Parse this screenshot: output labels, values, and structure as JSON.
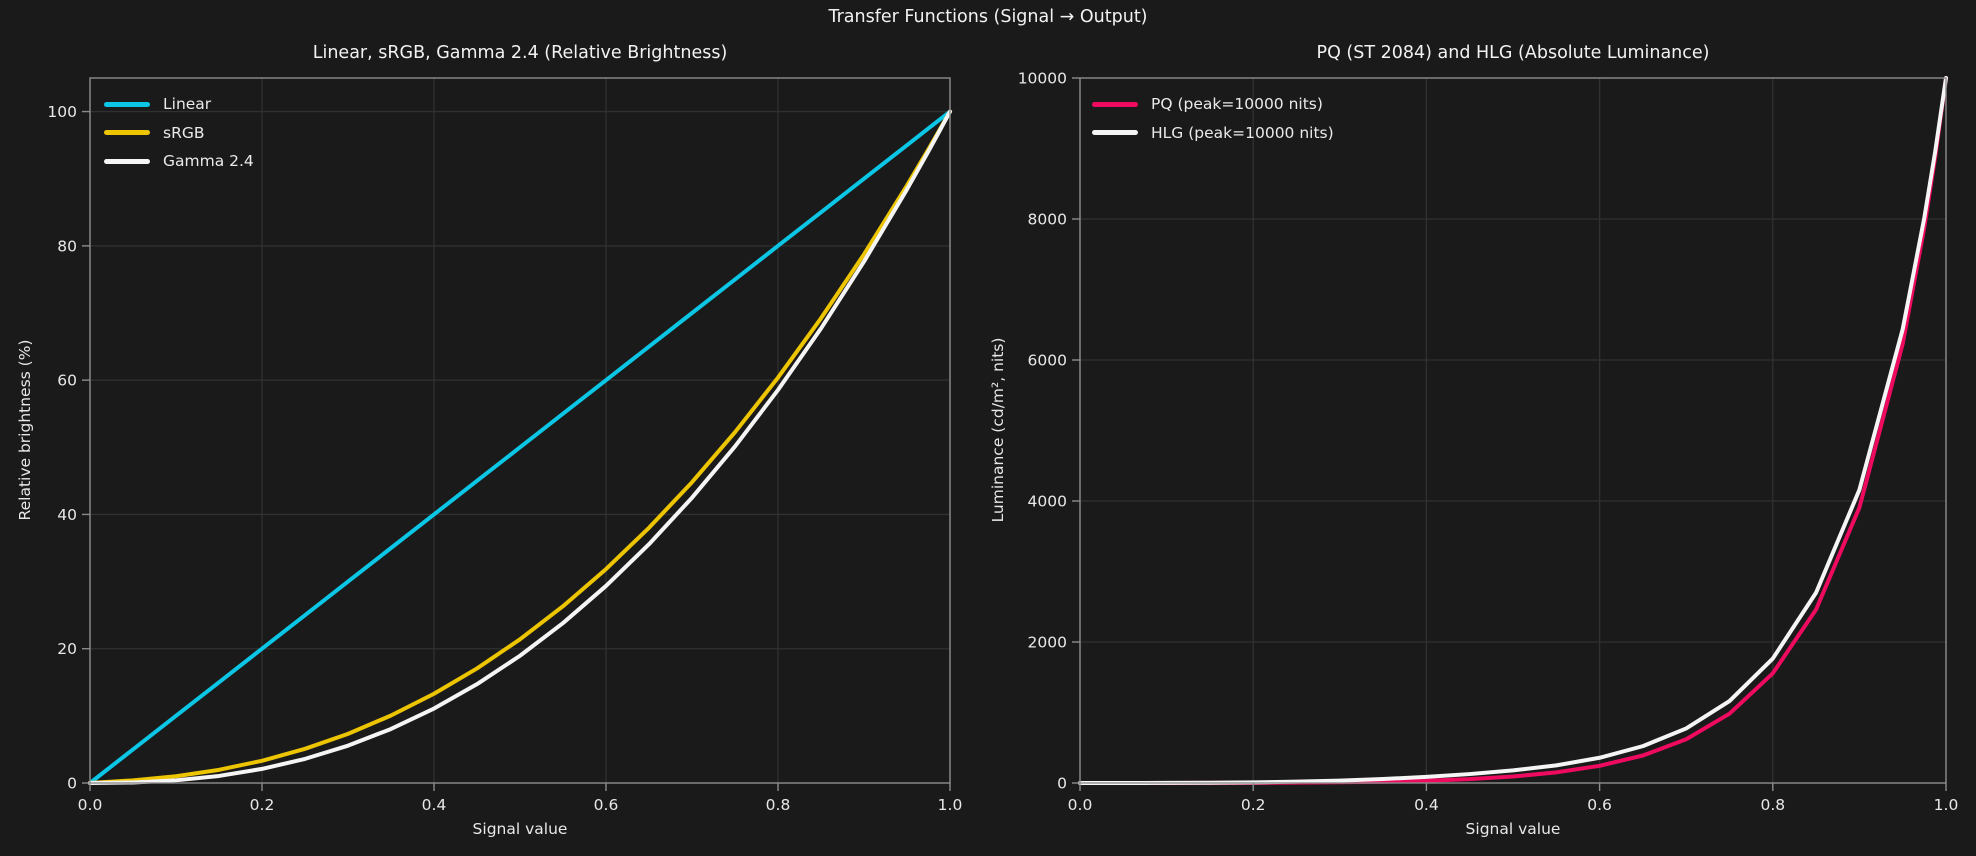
{
  "figure": {
    "title": "Transfer Functions (Signal → Output)",
    "bg_color": "#1a1a1a",
    "grid_color": "#313131",
    "spine_color": "#8c8c8c",
    "tick_color": "#e8e8e8",
    "title_color": "#f2f2f2"
  },
  "chart_data": [
    {
      "type": "line",
      "title": "Linear, sRGB, Gamma 2.4 (Relative Brightness)",
      "xlabel": "Signal value",
      "ylabel": "Relative brightness (%)",
      "xlim": [
        0,
        1
      ],
      "ylim": [
        0,
        105
      ],
      "grid": true,
      "legend_position": "upper-left",
      "xticks": [
        0.0,
        0.2,
        0.4,
        0.6,
        0.8,
        1.0
      ],
      "xtick_labels": [
        "0.0",
        "0.2",
        "0.4",
        "0.6",
        "0.8",
        "1.0"
      ],
      "yticks": [
        0,
        20,
        40,
        60,
        80,
        100
      ],
      "ytick_labels": [
        "0",
        "20",
        "40",
        "60",
        "80",
        "100"
      ],
      "x": [
        0,
        0.05,
        0.1,
        0.15,
        0.2,
        0.25,
        0.3,
        0.35,
        0.4,
        0.45,
        0.5,
        0.55,
        0.6,
        0.65,
        0.7,
        0.75,
        0.8,
        0.85,
        0.9,
        0.95,
        0.975,
        0.9875,
        1.0
      ],
      "series": [
        {
          "name": "Linear",
          "color": "#0cc6e6",
          "values": [
            0,
            5,
            10,
            15,
            20,
            25,
            30,
            35,
            40,
            45,
            50,
            55,
            60,
            65,
            70,
            75,
            80,
            85,
            90,
            95,
            97.5,
            98.75,
            100
          ]
        },
        {
          "name": "sRGB",
          "color": "#ecc500",
          "values": [
            0,
            0.39,
            1.0,
            1.96,
            3.31,
            5.09,
            7.32,
            10.05,
            13.29,
            17.06,
            21.4,
            26.33,
            31.86,
            38.01,
            44.8,
            52.25,
            60.38,
            69.21,
            78.74,
            89.0,
            94.41,
            97.18,
            100
          ]
        },
        {
          "name": "Gamma 2.4",
          "color": "#f5f5f5",
          "values": [
            0,
            0.08,
            0.4,
            1.05,
            2.1,
            3.59,
            5.56,
            8.05,
            11.09,
            14.72,
            18.95,
            23.82,
            29.35,
            35.56,
            42.49,
            50.13,
            58.54,
            67.7,
            77.66,
            88.42,
            94.1,
            97.03,
            100
          ]
        }
      ]
    },
    {
      "type": "line",
      "title": "PQ (ST 2084) and HLG (Absolute Luminance)",
      "xlabel": "Signal value",
      "ylabel": "Luminance (cd/m², nits)",
      "xlim": [
        0,
        1
      ],
      "ylim": [
        0,
        10000
      ],
      "grid": true,
      "legend_position": "upper-left",
      "xticks": [
        0.0,
        0.2,
        0.4,
        0.6,
        0.8,
        1.0
      ],
      "xtick_labels": [
        "0.0",
        "0.2",
        "0.4",
        "0.6",
        "0.8",
        "1.0"
      ],
      "yticks": [
        0,
        2000,
        4000,
        6000,
        8000,
        10000
      ],
      "ytick_labels": [
        "0",
        "2000",
        "4000",
        "6000",
        "8000",
        "10000"
      ],
      "x": [
        0,
        0.05,
        0.1,
        0.15,
        0.2,
        0.25,
        0.3,
        0.35,
        0.4,
        0.45,
        0.5,
        0.55,
        0.6,
        0.65,
        0.7,
        0.75,
        0.8,
        0.85,
        0.9,
        0.95,
        0.975,
        0.9875,
        1.0
      ],
      "series": [
        {
          "name": "PQ (peak=10000 nits)",
          "color": "#ee0b5f",
          "values": [
            0,
            0.06,
            0.32,
            1.0,
            2.43,
            5.15,
            10.0,
            18.4,
            32.4,
            55.3,
            92.3,
            151,
            244,
            390,
            621,
            983,
            1556,
            2461,
            3907,
            6230,
            7885,
            8878,
            10000
          ]
        },
        {
          "name": "HLG (peak=10000 nits)",
          "color": "#f5f5f5",
          "values": [
            0,
            0.1,
            0.97,
            3.61,
            9.16,
            18.9,
            34.1,
            56.1,
            86.7,
            126.8,
            178.7,
            250,
            358,
            523,
            774,
            1163,
            1765,
            2700,
            4159,
            6437,
            8020,
            8955,
            10000
          ]
        }
      ]
    }
  ]
}
